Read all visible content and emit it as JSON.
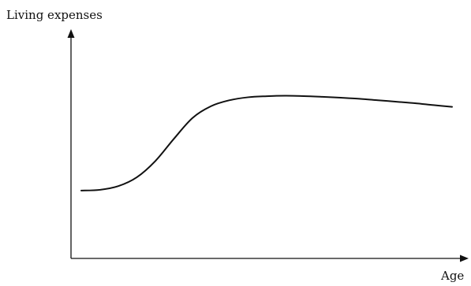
{
  "chart_data": {
    "type": "line",
    "title": "",
    "xlabel": "Age",
    "ylabel": "Living expenses",
    "grid": false,
    "legend": "none",
    "x_ticks": [],
    "y_ticks": [],
    "xlim": [
      0,
      100
    ],
    "ylim": [
      0,
      100
    ],
    "series": [
      {
        "values_description": "",
        "x": [
          0,
          5,
          10,
          15,
          20,
          25,
          30,
          35,
          40,
          45,
          50,
          55,
          60,
          65,
          70,
          75,
          80,
          85,
          90,
          95,
          100
        ],
        "y": [
          24,
          24.5,
          27,
          33,
          44,
          59,
          73,
          81,
          85,
          87,
          87.7,
          88,
          87.8,
          87.3,
          86.7,
          86,
          85,
          84,
          83,
          81.7,
          80.5
        ]
      }
    ],
    "colors": {
      "line": "#111111",
      "axes": "#111111",
      "background": "#ffffff"
    }
  }
}
